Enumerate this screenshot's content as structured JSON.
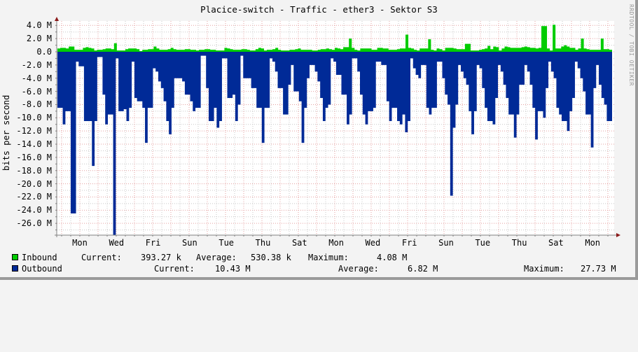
{
  "title": "Placice-switch - Traffic - ether3 - Sektor S3",
  "watermark": "RRDTOOL / TOBI OETIKER",
  "colors": {
    "inbound": "#00cc00",
    "outbound": "#002a97",
    "grid_major": "#e5a0a0",
    "grid_minor": "#c8c8c8",
    "background": "#f3f3f3",
    "plot_bg": "#ffffff",
    "axis": "#808080",
    "arrow": "#8b1a1a"
  },
  "legend": {
    "inbound": {
      "name": "Inbound",
      "current_label": "Current:",
      "current": "393.27 k",
      "average_label": "Average:",
      "average": "530.38 k",
      "maximum_label": "Maximum:",
      "maximum": "4.08 M"
    },
    "outbound": {
      "name": "Outbound",
      "current_label": "Current:",
      "current": "10.43 M",
      "average_label": "Average:",
      "average": "6.82 M",
      "maximum_label": "Maximum:",
      "maximum": "27.73 M"
    }
  },
  "chart_data": {
    "type": "area",
    "title": "Placice-switch - Traffic - ether3 - Sektor S3",
    "xlabel": "",
    "ylabel": "bits per second",
    "ylim": [
      -27.5,
      4.5
    ],
    "y_ticks": [
      "4.0 M",
      "2.0 M",
      "0.0",
      "-2.0 M",
      "-4.0 M",
      "-6.0 M",
      "-8.0 M",
      "-10.0 M",
      "-12.0 M",
      "-14.0 M",
      "-16.0 M",
      "-18.0 M",
      "-20.0 M",
      "-22.0 M",
      "-24.0 M",
      "-26.0 M"
    ],
    "x_ticks": [
      "Mon",
      "Wed",
      "Fri",
      "Sun",
      "Tue",
      "Thu",
      "Sat",
      "Mon",
      "Wed",
      "Fri",
      "Sun",
      "Tue",
      "Thu",
      "Sat",
      "Mon"
    ],
    "grid": true,
    "legend_position": "bottom",
    "series": [
      {
        "name": "Inbound",
        "unit": "M bits/s",
        "values": [
          0.5,
          0.6,
          0.6,
          0.5,
          0.8,
          0.8,
          0.3,
          0.3,
          0.3,
          0.6,
          0.7,
          0.6,
          0.5,
          0.2,
          0.3,
          0.3,
          0.4,
          0.5,
          0.5,
          0.4,
          1.3,
          0.2,
          0.2,
          0.2,
          0.4,
          0.5,
          0.5,
          0.5,
          0.4,
          0.1,
          0.3,
          0.3,
          0.4,
          0.4,
          0.8,
          0.5,
          0.3,
          0.3,
          0.3,
          0.4,
          0.6,
          0.4,
          0.3,
          0.3,
          0.3,
          0.4,
          0.4,
          0.3,
          0.3,
          0.2,
          0.3,
          0.3,
          0.4,
          0.4,
          0.3,
          0.3,
          0.2,
          0.2,
          0.2,
          0.6,
          0.5,
          0.4,
          0.3,
          0.3,
          0.3,
          0.4,
          0.4,
          0.3,
          0.2,
          0.2,
          0.4,
          0.6,
          0.5,
          0.2,
          0.3,
          0.3,
          0.4,
          0.6,
          0.3,
          0.2,
          0.2,
          0.2,
          0.3,
          0.3,
          0.4,
          0.5,
          0.3,
          0.3,
          0.3,
          0.3,
          0.2,
          0.2,
          0.3,
          0.4,
          0.4,
          0.5,
          0.4,
          0.3,
          0.6,
          0.5,
          0.4,
          0.7,
          0.7,
          2.0,
          0.6,
          0.3,
          0.2,
          0.5,
          0.5,
          0.5,
          0.5,
          0.3,
          0.3,
          0.6,
          0.6,
          0.5,
          0.5,
          0.3,
          0.3,
          0.3,
          0.4,
          0.5,
          0.5,
          2.6,
          0.6,
          0.5,
          0.3,
          0.2,
          0.5,
          0.5,
          0.5,
          1.9,
          0.3,
          0.2,
          0.5,
          0.4,
          0.2,
          0.6,
          0.6,
          0.6,
          0.5,
          0.4,
          0.4,
          0.4,
          1.2,
          1.2,
          0.2,
          0.2,
          0.2,
          0.3,
          0.4,
          0.5,
          0.9,
          0.4,
          0.8,
          0.7,
          0.2,
          0.5,
          0.8,
          0.7,
          0.6,
          0.6,
          0.6,
          0.6,
          0.7,
          0.8,
          0.7,
          0.6,
          0.6,
          0.5,
          0.6,
          3.9,
          3.9,
          0.5,
          0.2,
          4.1,
          0.5,
          0.5,
          0.8,
          1.0,
          0.8,
          0.6,
          0.6,
          0.3,
          0.5,
          2.0,
          0.5,
          0.4,
          0.3,
          0.3,
          0.3,
          0.3,
          2.0,
          0.4,
          0.4,
          0.3
        ]
      },
      {
        "name": "Outbound",
        "unit": "M bits/s",
        "values": [
          -8.5,
          -8.5,
          -11,
          -9,
          -9,
          -24.5,
          -24.5,
          -1.5,
          -2.2,
          -2.2,
          -10.5,
          -10.5,
          -10.5,
          -17.3,
          -10.5,
          -0.8,
          -0.8,
          -6.5,
          -11,
          -9.5,
          -9.5,
          -27.8,
          -1,
          -9,
          -9,
          -8.7,
          -10.5,
          -8.5,
          -1.5,
          -7,
          -7.5,
          -7.5,
          -8.5,
          -13.8,
          -8.5,
          -8.5,
          -2.5,
          -3,
          -4.5,
          -5.5,
          -7.5,
          -10.5,
          -12.5,
          -8.5,
          -4,
          -4,
          -4,
          -4.5,
          -6.5,
          -6.5,
          -7.5,
          -9,
          -8.5,
          -8.5,
          -0.6,
          -0.6,
          -5.5,
          -10.5,
          -10.5,
          -8.5,
          -11.5,
          -10.5,
          -1,
          -1,
          -7,
          -7,
          -6.5,
          -10.5,
          -8,
          -0.6,
          -4,
          -4,
          -4,
          -5.5,
          -5.5,
          -8.5,
          -8.5,
          -13.8,
          -8.5,
          -8.5,
          -1,
          -1.5,
          -3,
          -5.5,
          -5.5,
          -9.5,
          -9.5,
          -5,
          -2,
          -6,
          -6,
          -7.5,
          -13.8,
          -8.5,
          -4,
          -2,
          -2,
          -3,
          -4.5,
          -7,
          -10.5,
          -8.5,
          -8,
          -1,
          -1.5,
          -3.5,
          -3.5,
          -6.5,
          -6.5,
          -11,
          -9.5,
          -1,
          -1,
          -3,
          -6.5,
          -9.5,
          -11,
          -9,
          -9,
          -8.5,
          -1.5,
          -1.5,
          -2,
          -2,
          -7.5,
          -10.5,
          -8.5,
          -8.5,
          -10.5,
          -11,
          -9.5,
          -12.2,
          -10.5,
          -1,
          -2.5,
          -3.5,
          -4,
          -2,
          -2,
          -8.5,
          -9.5,
          -8.5,
          -8.5,
          -1.5,
          -1.5,
          -4,
          -6.5,
          -8,
          -21.8,
          -11.5,
          -8,
          -2,
          -3,
          -4,
          -5,
          -9,
          -12.5,
          -9,
          -2,
          -2.5,
          -5.5,
          -8.5,
          -10.5,
          -10.5,
          -11,
          -7,
          -2,
          -3,
          -5,
          -7,
          -9.5,
          -9.5,
          -13,
          -9.5,
          -5,
          -5,
          -2,
          -3,
          -5,
          -8.5,
          -13.3,
          -9,
          -9,
          -10,
          -5.5,
          -1.5,
          -3,
          -4,
          -8.5,
          -9.5,
          -10.5,
          -10.5,
          -12,
          -9,
          -7,
          -1.5,
          -2.5,
          -4,
          -6,
          -9.5,
          -9.5,
          -14.5,
          -5.5,
          -2,
          -5,
          -7,
          -8,
          -10.5,
          -10.5
        ]
      }
    ]
  }
}
